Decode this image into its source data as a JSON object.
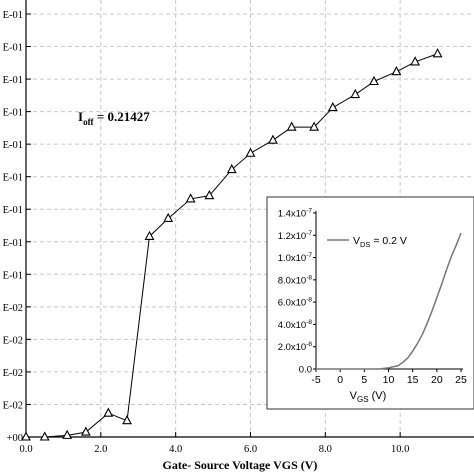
{
  "chart_data": [
    {
      "type": "scatter",
      "title": "",
      "xlabel": "Gate- Source Voltage VGS (V)",
      "ylabel": "",
      "annotation": "I_off = 0.21427",
      "annotation_main": "I",
      "annotation_sub": "off",
      "annotation_rest": " = 0.21427",
      "xlim": [
        0,
        12
      ],
      "x_ticks": [
        0,
        2,
        4,
        6,
        8,
        10
      ],
      "x_tick_labels": [
        "0.0",
        "2.0",
        "4.0",
        "6.0",
        "8.0",
        "10.0"
      ],
      "y_tick_labels": [
        "E-01",
        "E-01",
        "E-01",
        "E-01",
        "E-01",
        "E-01",
        "E-01",
        "E-01",
        "E-01",
        "E-02",
        "E-02",
        "E-02",
        "E-02",
        "+00"
      ],
      "grid": true,
      "marker": "open-triangle",
      "series": [
        {
          "x": [
            0,
            0.5,
            1.1,
            1.6,
            2.2,
            2.7,
            3.3,
            3.8,
            4.4,
            4.9,
            5.5,
            6.0,
            6.6,
            7.1,
            7.7,
            8.2,
            8.8,
            9.3,
            9.9,
            10.4,
            11.0
          ],
          "y": [
            0.0,
            0.0,
            0.005,
            0.015,
            0.073,
            0.05,
            0.615,
            0.67,
            0.73,
            0.74,
            0.82,
            0.87,
            0.91,
            0.95,
            0.95,
            1.01,
            1.05,
            1.09,
            1.12,
            1.15,
            1.175
          ]
        }
      ]
    },
    {
      "type": "line",
      "title": "",
      "xlabel": "V_GS (V)",
      "xlabel_main": "V",
      "xlabel_sub": "GS",
      "xlabel_rest": " (V)",
      "ylabel": "",
      "legend_position": "top-left",
      "legend_main": "V",
      "legend_sub": "DS",
      "legend_rest": " = 0.2 V",
      "xlim": [
        -5,
        25
      ],
      "ylim": [
        0,
        1.4e-07
      ],
      "x_ticks": [
        -5,
        0,
        5,
        10,
        15,
        20,
        25
      ],
      "x_tick_labels": [
        "-5",
        "0",
        "5",
        "10",
        "15",
        "20",
        "25"
      ],
      "y_ticks": [
        0,
        2e-08,
        4e-08,
        6e-08,
        8e-08,
        1e-07,
        1.2e-07,
        1.4e-07
      ],
      "y_tick_labels": [
        "0.0",
        "2.0x10",
        "4.0x10",
        "6.0x10",
        "8.0x10",
        "1.0x10",
        "1.2x10",
        "1.4x10"
      ],
      "y_tick_exponents": [
        "",
        "-8",
        "-8",
        "-8",
        "-8",
        "-7",
        "-7",
        "-7"
      ],
      "series": [
        {
          "name": "V_DS = 0.2 V",
          "x": [
            -5,
            8,
            10,
            12,
            13,
            14,
            15,
            16,
            17,
            18,
            19,
            20,
            21,
            22,
            23,
            24,
            25
          ],
          "y": [
            0,
            0,
            1e-09,
            3e-09,
            6e-09,
            1e-08,
            1.6e-08,
            2.3e-08,
            3.1e-08,
            4.1e-08,
            5.2e-08,
            6.4e-08,
            7.6e-08,
            8.9e-08,
            1.01e-07,
            1.11e-07,
            1.22e-07
          ]
        }
      ]
    }
  ]
}
